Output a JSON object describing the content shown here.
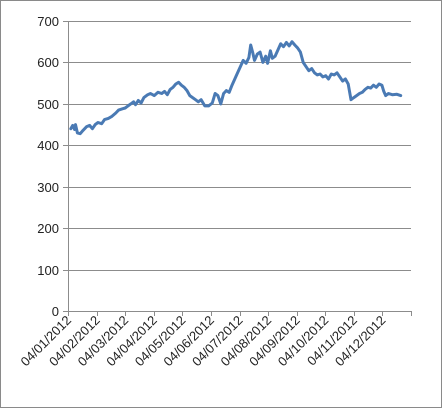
{
  "chart_data": {
    "type": "line",
    "title": "",
    "xlabel": "",
    "ylabel": "",
    "ylim": [
      0,
      700
    ],
    "yticks": [
      0,
      100,
      200,
      300,
      400,
      500,
      600,
      700
    ],
    "xtick_labels": [
      "04/01/2012",
      "04/02/2012",
      "04/03/2012",
      "04/04/2012",
      "04/05/2012",
      "04/06/2012",
      "04/07/2012",
      "04/08/2012",
      "04/09/2012",
      "04/10/2012",
      "04/11/2012",
      "04/12/2012"
    ],
    "grid": "horizontal",
    "legend": "none",
    "series": [
      {
        "color": "#4a7ab4",
        "points": [
          [
            "2012-01-04",
            440
          ],
          [
            "2012-01-06",
            448
          ],
          [
            "2012-01-08",
            438
          ],
          [
            "2012-01-09",
            450
          ],
          [
            "2012-01-11",
            430
          ],
          [
            "2012-01-14",
            428
          ],
          [
            "2012-01-17",
            436
          ],
          [
            "2012-01-21",
            445
          ],
          [
            "2012-01-24",
            448
          ],
          [
            "2012-01-27",
            440
          ],
          [
            "2012-01-30",
            450
          ],
          [
            "2012-02-02",
            455
          ],
          [
            "2012-02-06",
            452
          ],
          [
            "2012-02-09",
            462
          ],
          [
            "2012-02-13",
            465
          ],
          [
            "2012-02-17",
            470
          ],
          [
            "2012-02-21",
            478
          ],
          [
            "2012-02-24",
            485
          ],
          [
            "2012-02-28",
            488
          ],
          [
            "2012-03-02",
            490
          ],
          [
            "2012-03-05",
            495
          ],
          [
            "2012-03-08",
            500
          ],
          [
            "2012-03-11",
            505
          ],
          [
            "2012-03-13",
            498
          ],
          [
            "2012-03-16",
            508
          ],
          [
            "2012-03-19",
            502
          ],
          [
            "2012-03-22",
            515
          ],
          [
            "2012-03-26",
            522
          ],
          [
            "2012-03-29",
            525
          ],
          [
            "2012-04-02",
            520
          ],
          [
            "2012-04-06",
            528
          ],
          [
            "2012-04-10",
            525
          ],
          [
            "2012-04-13",
            530
          ],
          [
            "2012-04-16",
            522
          ],
          [
            "2012-04-19",
            535
          ],
          [
            "2012-04-22",
            540
          ],
          [
            "2012-04-25",
            548
          ],
          [
            "2012-04-28",
            552
          ],
          [
            "2012-05-01",
            545
          ],
          [
            "2012-05-04",
            540
          ],
          [
            "2012-05-07",
            532
          ],
          [
            "2012-05-10",
            520
          ],
          [
            "2012-05-13",
            515
          ],
          [
            "2012-05-16",
            510
          ],
          [
            "2012-05-19",
            505
          ],
          [
            "2012-05-22",
            510
          ],
          [
            "2012-05-26",
            495
          ],
          [
            "2012-05-30",
            495
          ],
          [
            "2012-06-03",
            502
          ],
          [
            "2012-06-06",
            525
          ],
          [
            "2012-06-09",
            520
          ],
          [
            "2012-06-12",
            500
          ],
          [
            "2012-06-15",
            525
          ],
          [
            "2012-06-18",
            532
          ],
          [
            "2012-06-21",
            528
          ],
          [
            "2012-06-24",
            545
          ],
          [
            "2012-06-27",
            560
          ],
          [
            "2012-06-30",
            575
          ],
          [
            "2012-07-03",
            590
          ],
          [
            "2012-07-06",
            605
          ],
          [
            "2012-07-09",
            598
          ],
          [
            "2012-07-12",
            612
          ],
          [
            "2012-07-14",
            642
          ],
          [
            "2012-07-16",
            625
          ],
          [
            "2012-07-18",
            605
          ],
          [
            "2012-07-21",
            620
          ],
          [
            "2012-07-24",
            625
          ],
          [
            "2012-07-27",
            600
          ],
          [
            "2012-07-30",
            615
          ],
          [
            "2012-08-01",
            598
          ],
          [
            "2012-08-04",
            628
          ],
          [
            "2012-08-06",
            610
          ],
          [
            "2012-08-09",
            615
          ],
          [
            "2012-08-12",
            630
          ],
          [
            "2012-08-15",
            645
          ],
          [
            "2012-08-18",
            638
          ],
          [
            "2012-08-21",
            648
          ],
          [
            "2012-08-24",
            640
          ],
          [
            "2012-08-27",
            650
          ],
          [
            "2012-08-30",
            642
          ],
          [
            "2012-09-02",
            635
          ],
          [
            "2012-09-05",
            625
          ],
          [
            "2012-09-08",
            600
          ],
          [
            "2012-09-11",
            590
          ],
          [
            "2012-09-14",
            580
          ],
          [
            "2012-09-17",
            585
          ],
          [
            "2012-09-20",
            575
          ],
          [
            "2012-09-23",
            570
          ],
          [
            "2012-09-26",
            572
          ],
          [
            "2012-09-29",
            565
          ],
          [
            "2012-10-02",
            568
          ],
          [
            "2012-10-05",
            560
          ],
          [
            "2012-10-08",
            572
          ],
          [
            "2012-10-11",
            570
          ],
          [
            "2012-10-14",
            575
          ],
          [
            "2012-10-17",
            565
          ],
          [
            "2012-10-20",
            555
          ],
          [
            "2012-10-23",
            560
          ],
          [
            "2012-10-26",
            548
          ],
          [
            "2012-10-29",
            510
          ],
          [
            "2012-11-01",
            515
          ],
          [
            "2012-11-04",
            520
          ],
          [
            "2012-11-07",
            525
          ],
          [
            "2012-11-10",
            528
          ],
          [
            "2012-11-13",
            535
          ],
          [
            "2012-11-16",
            540
          ],
          [
            "2012-11-19",
            538
          ],
          [
            "2012-11-22",
            545
          ],
          [
            "2012-11-25",
            540
          ],
          [
            "2012-11-28",
            548
          ],
          [
            "2012-12-01",
            545
          ],
          [
            "2012-12-03",
            530
          ],
          [
            "2012-12-05",
            520
          ],
          [
            "2012-12-08",
            525
          ],
          [
            "2012-12-12",
            522
          ],
          [
            "2012-12-17",
            523
          ],
          [
            "2012-12-21",
            520
          ]
        ]
      }
    ]
  }
}
